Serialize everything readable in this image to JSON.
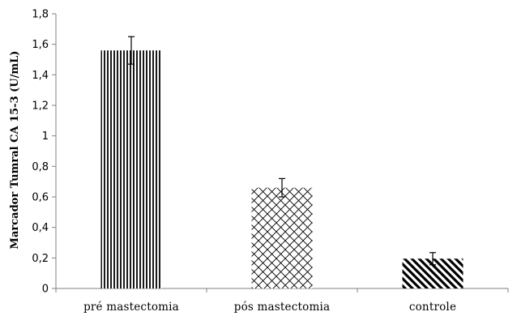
{
  "chart_data": {
    "type": "bar",
    "title": "",
    "xlabel": "",
    "ylabel": "Marcador Tumral CA 15-3 (U/mL)",
    "categories": [
      "pré mastectomia",
      "pós mastectomia",
      "controle"
    ],
    "values": [
      1.56,
      0.66,
      0.195
    ],
    "errors": [
      0.09,
      0.06,
      0.04
    ],
    "ylim": [
      0,
      1.8
    ],
    "yticks": [
      0,
      0.2,
      0.4,
      0.6,
      0.8,
      1,
      1.2,
      1.4,
      1.6,
      1.8
    ],
    "ytick_labels": [
      "0",
      "0,2",
      "0,4",
      "0,6",
      "0,8",
      "1",
      "1,2",
      "1,4",
      "1,6",
      "1,8"
    ],
    "bar_patterns": [
      "vertical-lines",
      "crosshatch-diagonal",
      "diagonal-lines"
    ],
    "grid": false,
    "legend": "none",
    "colors": {
      "bar_stroke": "#000000",
      "axis": "#808080"
    }
  }
}
